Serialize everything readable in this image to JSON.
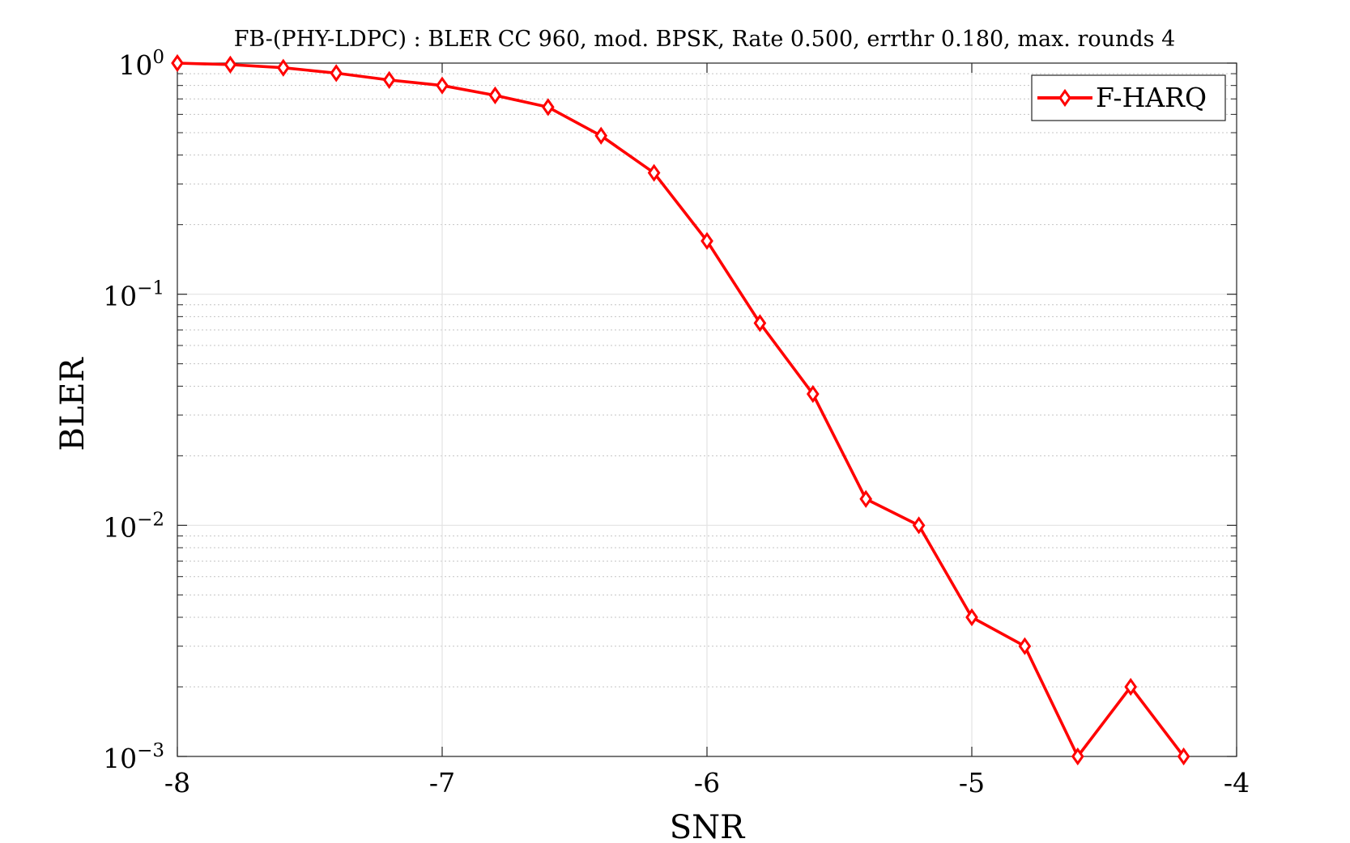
{
  "chart_data": {
    "type": "line",
    "title": "FB-(PHY-LDPC) : BLER CC 960, mod. BPSK, Rate 0.500, errthr 0.180, max. rounds 4",
    "xlabel": "SNR",
    "ylabel": "BLER",
    "xlim": [
      -8,
      -4
    ],
    "ylim": [
      0.001,
      1
    ],
    "yscale": "log",
    "grid": true,
    "legend_position": "top-right",
    "x_ticks": [
      {
        "value": -8,
        "label": "-8"
      },
      {
        "value": -7,
        "label": "-7"
      },
      {
        "value": -6,
        "label": "-6"
      },
      {
        "value": -5,
        "label": "-5"
      },
      {
        "value": -4,
        "label": "-4"
      }
    ],
    "y_ticks": [
      {
        "value": 1,
        "base": "10",
        "exp": "0"
      },
      {
        "value": 0.1,
        "base": "10",
        "exp": "−1"
      },
      {
        "value": 0.01,
        "base": "10",
        "exp": "−2"
      },
      {
        "value": 0.001,
        "base": "10",
        "exp": "−3"
      }
    ],
    "series": [
      {
        "name": "F-HARQ",
        "color": "#ff0000",
        "marker": "diamond",
        "x": [
          -8,
          -7.8,
          -7.6,
          -7.4,
          -7.2,
          -7,
          -6.8,
          -6.6,
          -6.4,
          -6.2,
          -6,
          -5.8,
          -5.6,
          -5.4,
          -5.2,
          -5,
          -4.8,
          -4.6,
          -4.4,
          -4.2
        ],
        "y": [
          1.0,
          0.985,
          0.955,
          0.905,
          0.845,
          0.8,
          0.725,
          0.645,
          0.485,
          0.335,
          0.17,
          0.075,
          0.037,
          0.013,
          0.01,
          0.004,
          0.003,
          0.001,
          0.002,
          0.001
        ]
      }
    ]
  }
}
